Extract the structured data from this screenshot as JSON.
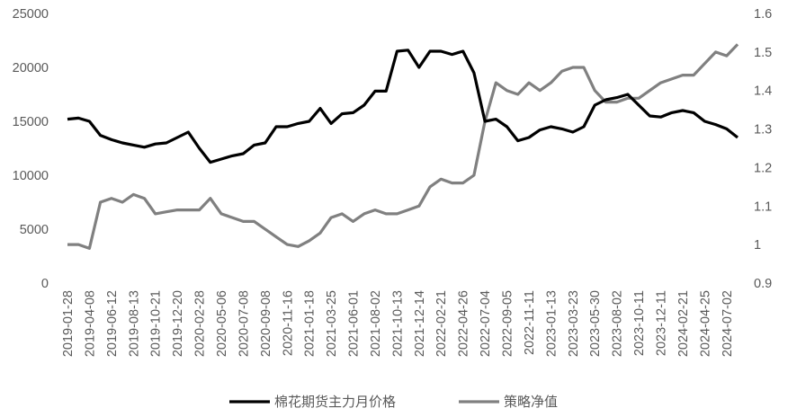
{
  "chart_data": {
    "type": "line",
    "x": [
      "2019-01-28",
      null,
      "2019-04-08",
      null,
      "2019-06-12",
      null,
      "2019-08-13",
      null,
      "2019-10-21",
      null,
      "2019-12-20",
      null,
      "2020-02-28",
      null,
      "2020-05-06",
      null,
      "2020-07-08",
      null,
      "2020-09-08",
      null,
      "2020-11-16",
      null,
      "2021-01-18",
      null,
      "2021-03-25",
      null,
      "2021-06-01",
      null,
      "2021-08-02",
      null,
      "2021-10-13",
      null,
      "2021-12-14",
      null,
      "2022-02-21",
      null,
      "2022-04-26",
      null,
      "2022-07-04",
      null,
      "2022-09-05",
      null,
      "2022-11-11",
      null,
      "2023-01-13",
      null,
      "2023-03-23",
      null,
      "2023-05-30",
      null,
      "2023-08-02",
      null,
      "2023-10-11",
      null,
      "2023-12-11",
      null,
      "2024-02-21",
      null,
      "2024-04-25",
      null,
      "2024-07-02",
      null
    ],
    "series": [
      {
        "name": "棉花期货主力月价格",
        "color": "#000000",
        "axis": "y",
        "values": [
          15200,
          15300,
          15000,
          13700,
          13300,
          13000,
          12800,
          12600,
          12900,
          13000,
          13500,
          14000,
          12500,
          11200,
          11500,
          11800,
          12000,
          12800,
          13000,
          14500,
          14500,
          14800,
          15000,
          16200,
          14800,
          15700,
          15800,
          16500,
          17800,
          17800,
          21500,
          21600,
          20000,
          21500,
          21500,
          21200,
          21500,
          19500,
          15000,
          15200,
          14500,
          13200,
          13500,
          14200,
          14500,
          14300,
          14000,
          14500,
          16500,
          17000,
          17200,
          17500,
          16500,
          15500,
          15400,
          15800,
          16000,
          15800,
          15000,
          14700,
          14300,
          13500
        ]
      },
      {
        "name": "策略净值",
        "color": "#808080",
        "axis": "y2",
        "values": [
          1.0,
          1.0,
          0.99,
          1.11,
          1.12,
          1.11,
          1.13,
          1.12,
          1.08,
          1.085,
          1.09,
          1.09,
          1.09,
          1.12,
          1.08,
          1.07,
          1.06,
          1.06,
          1.04,
          1.02,
          1.0,
          0.995,
          1.01,
          1.03,
          1.07,
          1.08,
          1.06,
          1.08,
          1.09,
          1.08,
          1.08,
          1.09,
          1.1,
          1.15,
          1.17,
          1.16,
          1.16,
          1.18,
          1.32,
          1.42,
          1.4,
          1.39,
          1.42,
          1.4,
          1.42,
          1.45,
          1.46,
          1.46,
          1.4,
          1.37,
          1.37,
          1.38,
          1.38,
          1.4,
          1.42,
          1.43,
          1.44,
          1.44,
          1.47,
          1.5,
          1.49,
          1.52
        ]
      }
    ],
    "ylim": [
      0,
      25000
    ],
    "yticks": [
      0,
      5000,
      10000,
      15000,
      20000,
      25000
    ],
    "y2lim": [
      0.9,
      1.6
    ],
    "y2ticks": [
      0.9,
      1,
      1.1,
      1.2,
      1.3,
      1.4,
      1.5,
      1.6
    ],
    "grid": false,
    "legend": "bottom"
  }
}
